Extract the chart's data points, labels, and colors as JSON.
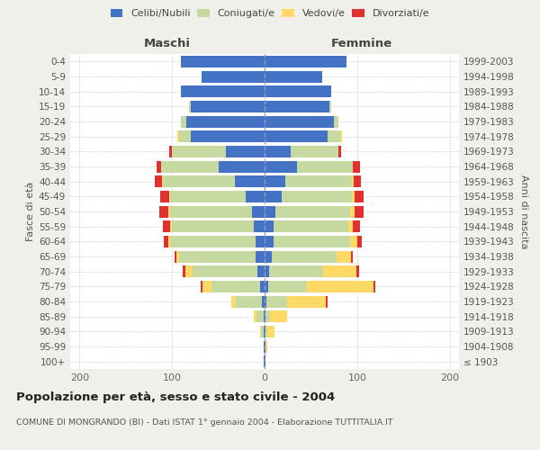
{
  "age_groups": [
    "100+",
    "95-99",
    "90-94",
    "85-89",
    "80-84",
    "75-79",
    "70-74",
    "65-69",
    "60-64",
    "55-59",
    "50-54",
    "45-49",
    "40-44",
    "35-39",
    "30-34",
    "25-29",
    "20-24",
    "15-19",
    "10-14",
    "5-9",
    "0-4"
  ],
  "birth_years": [
    "≤ 1903",
    "1904-1908",
    "1909-1913",
    "1914-1918",
    "1919-1923",
    "1924-1928",
    "1929-1933",
    "1934-1938",
    "1939-1943",
    "1944-1948",
    "1949-1953",
    "1954-1958",
    "1959-1963",
    "1964-1968",
    "1969-1973",
    "1974-1978",
    "1979-1983",
    "1984-1988",
    "1989-1993",
    "1994-1998",
    "1999-2003"
  ],
  "maschi_celibi": [
    1,
    1,
    1,
    1,
    3,
    5,
    8,
    10,
    10,
    12,
    14,
    20,
    32,
    50,
    42,
    80,
    85,
    80,
    90,
    68,
    90
  ],
  "maschi_coniugati": [
    0,
    0,
    3,
    8,
    28,
    52,
    70,
    82,
    92,
    88,
    88,
    82,
    78,
    62,
    58,
    12,
    5,
    2,
    0,
    0,
    0
  ],
  "maschi_vedovi": [
    0,
    0,
    1,
    3,
    5,
    10,
    8,
    3,
    2,
    2,
    2,
    1,
    1,
    0,
    0,
    2,
    0,
    0,
    0,
    0,
    0
  ],
  "maschi_divorziati": [
    0,
    0,
    0,
    0,
    0,
    2,
    2,
    2,
    5,
    8,
    10,
    10,
    8,
    5,
    3,
    0,
    0,
    0,
    0,
    0,
    0
  ],
  "femmine_nubili": [
    1,
    1,
    1,
    1,
    2,
    4,
    5,
    8,
    10,
    10,
    12,
    18,
    22,
    35,
    28,
    68,
    75,
    70,
    72,
    62,
    88
  ],
  "femmine_coniugate": [
    0,
    0,
    2,
    5,
    22,
    42,
    58,
    70,
    82,
    80,
    80,
    76,
    72,
    60,
    52,
    14,
    5,
    2,
    0,
    0,
    0
  ],
  "femmine_vedove": [
    0,
    2,
    8,
    18,
    42,
    72,
    36,
    15,
    8,
    5,
    5,
    3,
    2,
    0,
    0,
    2,
    0,
    0,
    0,
    0,
    0
  ],
  "femmine_divorziate": [
    0,
    0,
    0,
    0,
    2,
    2,
    3,
    2,
    5,
    8,
    10,
    10,
    8,
    8,
    3,
    0,
    0,
    0,
    0,
    0,
    0
  ],
  "color_celibi": "#4472c4",
  "color_coniugati": "#c5d9a0",
  "color_vedovi": "#ffd966",
  "color_divorziati": "#e03030",
  "title": "Popolazione per età, sesso e stato civile - 2004",
  "subtitle": "COMUNE DI MONGRANDO (BI) - Dati ISTAT 1° gennaio 2004 - Elaborazione TUTTITALIA.IT",
  "label_maschi": "Maschi",
  "label_femmine": "Femmine",
  "label_fasce": "Fasce di età",
  "label_anni": "Anni di nascita",
  "legend_labels": [
    "Celibi/Nubili",
    "Coniugati/e",
    "Vedovi/e",
    "Divorziati/e"
  ],
  "xlim": 210,
  "bg_color": "#f0f0eb",
  "plot_bg": "#ffffff"
}
